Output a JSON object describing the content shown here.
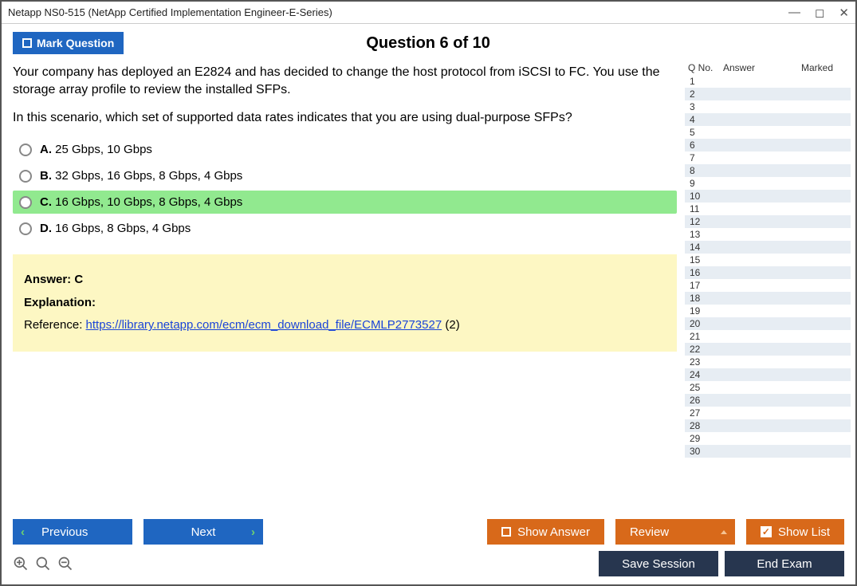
{
  "window": {
    "title": "Netapp NS0-515 (NetApp Certified Implementation Engineer-E-Series)"
  },
  "topbar": {
    "mark_label": "Mark Question",
    "question_title": "Question 6 of 10"
  },
  "question": {
    "para1": "Your company has deployed an E2824 and has decided to change the host protocol from iSCSI to FC. You use the storage array profile to review the installed SFPs.",
    "para2": "In this scenario, which set of supported data rates indicates that you are using dual-purpose SFPs?"
  },
  "options": [
    {
      "letter": "A.",
      "text": "25 Gbps, 10 Gbps",
      "correct": false
    },
    {
      "letter": "B.",
      "text": "32 Gbps, 16 Gbps, 8 Gbps, 4 Gbps",
      "correct": false
    },
    {
      "letter": "C.",
      "text": "16 Gbps, 10 Gbps, 8 Gbps, 4 Gbps",
      "correct": true
    },
    {
      "letter": "D.",
      "text": "16 Gbps, 8 Gbps, 4 Gbps",
      "correct": false
    }
  ],
  "answer_panel": {
    "answer_label": "Answer: C",
    "explanation_label": "Explanation:",
    "reference_prefix": "Reference: ",
    "reference_link_text": "https://library.netapp.com/ecm/ecm_download_file/ECMLP2773527",
    "reference_suffix": " (2)"
  },
  "side": {
    "head_qno": "Q No.",
    "head_answer": "Answer",
    "head_marked": "Marked",
    "row_count": 30
  },
  "buttons": {
    "previous": "Previous",
    "next": "Next",
    "show_answer": "Show Answer",
    "review": "Review",
    "show_list": "Show List",
    "save_session": "Save Session",
    "end_exam": "End Exam"
  },
  "colors": {
    "blue": "#1f66c1",
    "orange": "#d8691a",
    "dark": "#27364f",
    "correct_bg": "#91e98f",
    "answer_bg": "#fdf7c3",
    "row_even": "#e7edf3"
  }
}
